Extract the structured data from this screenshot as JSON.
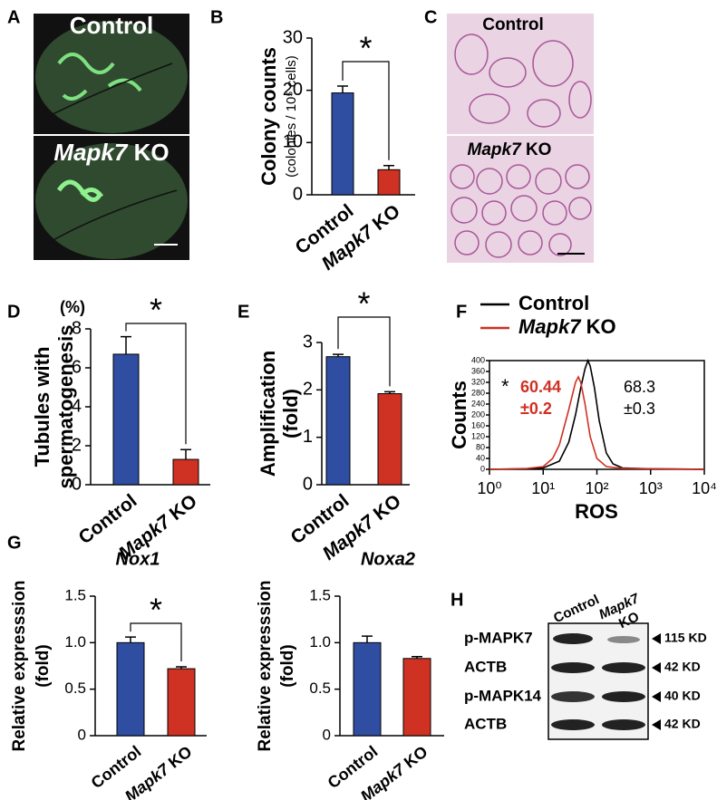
{
  "panel_letters": [
    "A",
    "B",
    "C",
    "D",
    "E",
    "F",
    "G",
    "H"
  ],
  "images": [
    {
      "label": "Control"
    },
    {
      "label": "Mapk7 KO"
    },
    {
      "label": "Control"
    },
    {
      "label": "Mapk7 KO"
    }
  ],
  "blot": {
    "column_labels": [
      "Control",
      "Mapk7",
      "KO"
    ],
    "rows": [
      {
        "label": "p-MAPK7",
        "size": "115 KD"
      },
      {
        "label": "ACTB",
        "size": "42 KD"
      },
      {
        "label": "p-MAPK14",
        "size": "40 KD"
      },
      {
        "label": "ACTB",
        "size": "42 KD"
      }
    ]
  },
  "chart_data": [
    {
      "type": "bar",
      "y_label": [
        "Colony counts",
        "(colonies / 10⁵ cells)"
      ],
      "categories": [
        "Control",
        "Mapk7 KO"
      ],
      "values": [
        19.5,
        4.8
      ],
      "errors": [
        1.3,
        0.8
      ],
      "colors": [
        "#2f4ea2",
        "#cf3123"
      ],
      "ylim": [
        0,
        30
      ],
      "yticks": [
        0,
        10,
        20,
        30
      ],
      "annotation": "*"
    },
    {
      "type": "bar",
      "y_label": [
        "Tubules with",
        "spermatogenesis"
      ],
      "y_unit": "(%)",
      "categories": [
        "Control",
        "Mapk7 KO"
      ],
      "values": [
        6.7,
        1.3
      ],
      "errors": [
        0.9,
        0.5
      ],
      "colors": [
        "#2f4ea2",
        "#cf3123"
      ],
      "ylim": [
        0,
        8
      ],
      "yticks": [
        0,
        2,
        4,
        6,
        8
      ],
      "annotation": "*"
    },
    {
      "type": "bar",
      "y_label": [
        "Amplification",
        "(fold)"
      ],
      "categories": [
        "Control",
        "Mapk7 KO"
      ],
      "values": [
        2.7,
        1.92
      ],
      "errors": [
        0.05,
        0.04
      ],
      "colors": [
        "#2f4ea2",
        "#cf3123"
      ],
      "ylim": [
        0,
        3
      ],
      "yticks": [
        0,
        1,
        2,
        3
      ],
      "annotation": "*"
    },
    {
      "type": "line",
      "y_label": "Counts",
      "x_label": "ROS",
      "log_x": true,
      "series": [
        {
          "name": "Control",
          "color": "#000000",
          "x": [
            1,
            5,
            10,
            20,
            30,
            40,
            50,
            60,
            68,
            75,
            90,
            110,
            150,
            200,
            300,
            1000,
            10000
          ],
          "values": [
            0,
            2,
            5,
            30,
            100,
            200,
            300,
            370,
            400,
            380,
            300,
            180,
            60,
            20,
            5,
            2,
            0
          ]
        },
        {
          "name": "Mapk7 KO",
          "color": "#cf3123",
          "x": [
            1,
            5,
            10,
            15,
            20,
            30,
            40,
            45,
            50,
            60,
            75,
            100,
            150,
            300,
            1000,
            10000
          ],
          "values": [
            0,
            3,
            10,
            40,
            90,
            220,
            320,
            340,
            320,
            240,
            120,
            40,
            10,
            3,
            2,
            0
          ]
        }
      ],
      "annotations": [
        "*",
        "60.44",
        "±0.2",
        "68.3",
        "±0.3"
      ],
      "xlim": [
        1,
        10000
      ],
      "xticks": [
        {
          "value": 1,
          "label": "10⁰"
        },
        {
          "value": 10,
          "label": "10¹"
        },
        {
          "value": 100,
          "label": "10²"
        },
        {
          "value": 1000,
          "label": "10³"
        },
        {
          "value": 10000,
          "label": "10⁴"
        }
      ],
      "ylim": [
        0,
        400
      ],
      "yticks": [
        0,
        40,
        80,
        120,
        160,
        200,
        240,
        280,
        320,
        360,
        400
      ]
    },
    {
      "type": "bar",
      "title": "Nox1",
      "y_label": [
        "Relative expresssion",
        "(fold)"
      ],
      "categories": [
        "Control",
        "Mapk7 KO"
      ],
      "values": [
        1.0,
        0.72
      ],
      "errors": [
        0.06,
        0.02
      ],
      "colors": [
        "#2f4ea2",
        "#cf3123"
      ],
      "ylim": [
        0,
        1.5
      ],
      "yticks": [
        0,
        0.5,
        {
          "value": 1,
          "label": "1.0"
        },
        1.5
      ],
      "annotation": "*"
    },
    {
      "type": "bar",
      "title": "Noxa2",
      "y_label": [
        "Relative expresssion",
        "(fold)"
      ],
      "categories": [
        "Control",
        "Mapk7 KO"
      ],
      "values": [
        1.0,
        0.83
      ],
      "errors": [
        0.07,
        0.02
      ],
      "colors": [
        "#2f4ea2",
        "#cf3123"
      ],
      "ylim": [
        0,
        1.5
      ],
      "yticks": [
        0,
        0.5,
        {
          "value": 1,
          "label": "1.0"
        },
        1.5
      ]
    }
  ]
}
